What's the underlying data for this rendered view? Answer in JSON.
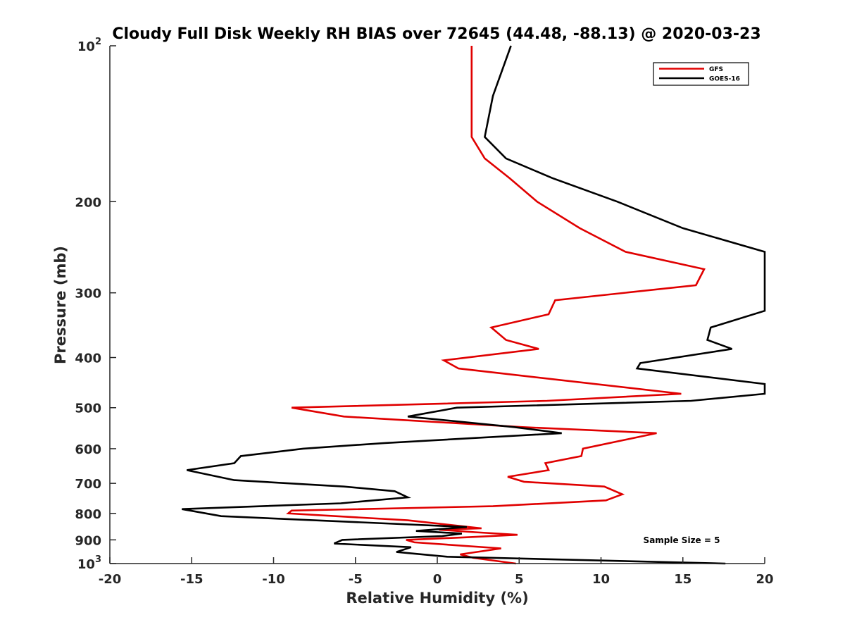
{
  "chart_data": {
    "type": "line",
    "title": "Cloudy Full Disk Weekly RH BIAS over 72645 (44.48, -88.13) @ 2020-03-23",
    "xlabel": "Relative Humidity (%)",
    "ylabel": "Pressure (mb)",
    "xlim": [
      -20,
      20
    ],
    "ylim": [
      100,
      1000
    ],
    "y_scale": "log",
    "y_reversed": true,
    "x_ticks": [
      -20,
      -15,
      -10,
      -5,
      0,
      5,
      10,
      15,
      20
    ],
    "x_tick_labels": [
      "-20",
      "-15",
      "-10",
      "-5",
      "0",
      "5",
      "10",
      "15",
      "20"
    ],
    "y_ticks": [
      100,
      200,
      300,
      400,
      500,
      600,
      700,
      800,
      900,
      1000
    ],
    "y_tick_labels": [
      {
        "base": "10",
        "sup": "2"
      },
      {
        "base": "200",
        "sup": ""
      },
      {
        "base": "300",
        "sup": ""
      },
      {
        "base": "400",
        "sup": ""
      },
      {
        "base": "500",
        "sup": ""
      },
      {
        "base": "600",
        "sup": ""
      },
      {
        "base": "700",
        "sup": ""
      },
      {
        "base": "800",
        "sup": ""
      },
      {
        "base": "900",
        "sup": ""
      },
      {
        "base": "10",
        "sup": "3"
      }
    ],
    "grid": false,
    "legend_position": "top-right",
    "annotation": "Sample Size = 5",
    "series": [
      {
        "name": "GFS",
        "color": "#e00000",
        "points": [
          [
            2.1,
            100
          ],
          [
            2.1,
            125
          ],
          [
            2.1,
            150
          ],
          [
            2.9,
            165
          ],
          [
            4.4,
            180
          ],
          [
            6.1,
            200
          ],
          [
            8.7,
            225
          ],
          [
            11.5,
            250
          ],
          [
            16.3,
            270
          ],
          [
            15.8,
            290
          ],
          [
            7.2,
            310
          ],
          [
            6.8,
            330
          ],
          [
            3.3,
            350
          ],
          [
            4.2,
            370
          ],
          [
            6.2,
            385
          ],
          [
            0.4,
            405
          ],
          [
            1.3,
            420
          ],
          [
            14.9,
            470
          ],
          [
            6.7,
            485
          ],
          [
            -8.9,
            500
          ],
          [
            -5.7,
            520
          ],
          [
            5.2,
            545
          ],
          [
            13.4,
            560
          ],
          [
            8.9,
            600
          ],
          [
            8.8,
            620
          ],
          [
            6.6,
            640
          ],
          [
            6.8,
            660
          ],
          [
            4.3,
            680
          ],
          [
            5.3,
            695
          ],
          [
            10.2,
            710
          ],
          [
            11.3,
            735
          ],
          [
            10.3,
            755
          ],
          [
            3.4,
            775
          ],
          [
            -8.9,
            790
          ],
          [
            -9.1,
            800
          ],
          [
            -1.8,
            825
          ],
          [
            2.7,
            855
          ],
          [
            0.1,
            860
          ],
          [
            2.3,
            870
          ],
          [
            4.9,
            880
          ],
          [
            1.7,
            890
          ],
          [
            -1.9,
            900
          ],
          [
            -1.4,
            910
          ],
          [
            3.9,
            935
          ],
          [
            1.4,
            960
          ],
          [
            2.2,
            975
          ],
          [
            4.8,
            1000
          ]
        ]
      },
      {
        "name": "GOES-16",
        "color": "#000000",
        "points": [
          [
            4.5,
            100
          ],
          [
            3.4,
            125
          ],
          [
            2.9,
            150
          ],
          [
            4.2,
            165
          ],
          [
            7.0,
            180
          ],
          [
            11.0,
            200
          ],
          [
            15.0,
            225
          ],
          [
            20.0,
            250
          ],
          [
            20.5,
            300
          ],
          [
            20.0,
            325
          ],
          [
            16.7,
            350
          ],
          [
            16.5,
            370
          ],
          [
            18.0,
            385
          ],
          [
            12.4,
            410
          ],
          [
            12.2,
            420
          ],
          [
            20.0,
            450
          ],
          [
            20.5,
            460
          ],
          [
            20.0,
            470
          ],
          [
            15.5,
            485
          ],
          [
            1.2,
            500
          ],
          [
            -1.8,
            520
          ],
          [
            4.7,
            545
          ],
          [
            7.6,
            560
          ],
          [
            -3.2,
            585
          ],
          [
            -8.2,
            600
          ],
          [
            -12.0,
            620
          ],
          [
            -12.4,
            640
          ],
          [
            -15.3,
            660
          ],
          [
            -12.4,
            690
          ],
          [
            -5.7,
            710
          ],
          [
            -2.6,
            725
          ],
          [
            -1.8,
            745
          ],
          [
            -5.9,
            765
          ],
          [
            -15.6,
            785
          ],
          [
            -13.2,
            810
          ],
          [
            1.8,
            850
          ],
          [
            -1.3,
            865
          ],
          [
            1.5,
            875
          ],
          [
            0.3,
            885
          ],
          [
            -5.8,
            900
          ],
          [
            -6.3,
            915
          ],
          [
            -1.6,
            930
          ],
          [
            -2.5,
            950
          ],
          [
            0.6,
            970
          ],
          [
            17.6,
            1000
          ]
        ]
      }
    ]
  }
}
